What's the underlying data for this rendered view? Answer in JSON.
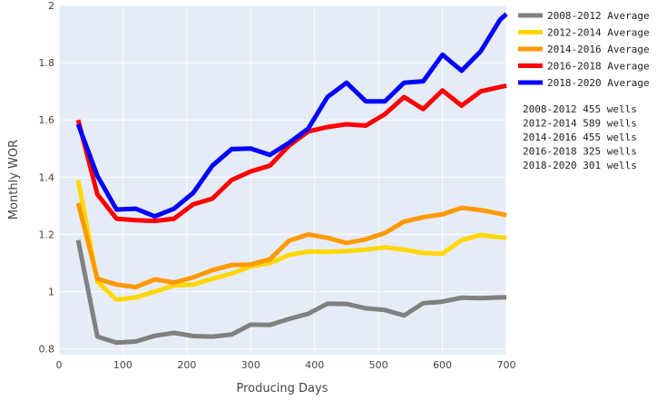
{
  "chart_data": {
    "type": "line",
    "xlabel": "Producing Days",
    "ylabel": "Monthly WOR",
    "xlim": [
      0,
      700
    ],
    "ylim": [
      0.78,
      2.0
    ],
    "xticks": [
      0,
      100,
      200,
      300,
      400,
      500,
      600,
      700
    ],
    "yticks": [
      0.8,
      1,
      1.2,
      1.4,
      1.6,
      1.8,
      2
    ],
    "ytick_labels": [
      "0.8",
      "1",
      "1.2",
      "1.4",
      "1.6",
      "1.8",
      "2"
    ],
    "grid": true,
    "legend_position": "top-right, outside plot",
    "background": "#e5ecf6",
    "x": [
      30,
      60,
      90,
      120,
      150,
      180,
      210,
      240,
      270,
      300,
      330,
      360,
      390,
      420,
      450,
      480,
      510,
      540,
      570,
      600,
      630,
      660,
      690,
      700
    ],
    "series": [
      {
        "name": "2008-2012 Average",
        "color": "#808080",
        "values": [
          1.18,
          0.843,
          0.822,
          0.826,
          0.846,
          0.856,
          0.845,
          0.843,
          0.85,
          0.885,
          0.884,
          0.905,
          0.923,
          0.958,
          0.957,
          0.942,
          0.936,
          0.917,
          0.96,
          0.965,
          0.979,
          0.977,
          0.98,
          0.98
        ]
      },
      {
        "name": "2012-2014 Average",
        "color": "#ffd700",
        "values": [
          1.39,
          1.035,
          0.972,
          0.98,
          1.0,
          1.022,
          1.025,
          1.045,
          1.063,
          1.088,
          1.1,
          1.128,
          1.14,
          1.139,
          1.142,
          1.147,
          1.155,
          1.147,
          1.135,
          1.133,
          1.18,
          1.198,
          1.19,
          1.188
        ]
      },
      {
        "name": "2014-2016 Average",
        "color": "#ff9900",
        "values": [
          1.31,
          1.045,
          1.025,
          1.016,
          1.043,
          1.032,
          1.05,
          1.075,
          1.093,
          1.095,
          1.113,
          1.178,
          1.2,
          1.188,
          1.17,
          1.183,
          1.205,
          1.245,
          1.26,
          1.27,
          1.293,
          1.285,
          1.272,
          1.268
        ]
      },
      {
        "name": "2016-2018 Average",
        "color": "#ff0000",
        "values": [
          1.6,
          1.34,
          1.255,
          1.25,
          1.247,
          1.255,
          1.305,
          1.325,
          1.39,
          1.42,
          1.44,
          1.51,
          1.56,
          1.575,
          1.585,
          1.58,
          1.62,
          1.68,
          1.638,
          1.703,
          1.65,
          1.7,
          1.715,
          1.72
        ]
      },
      {
        "name": "2018-2020 Average",
        "color": "#0000ff",
        "values": [
          1.585,
          1.405,
          1.287,
          1.29,
          1.263,
          1.29,
          1.345,
          1.44,
          1.498,
          1.5,
          1.478,
          1.52,
          1.57,
          1.68,
          1.73,
          1.665,
          1.665,
          1.73,
          1.735,
          1.828,
          1.772,
          1.84,
          1.95,
          1.97
        ]
      }
    ],
    "annotations": [
      "2008-2012 455 wells",
      "2012-2014 589 wells",
      "2014-2016 455 wells",
      "2016-2018 325 wells",
      "2018-2020 301 wells"
    ]
  }
}
